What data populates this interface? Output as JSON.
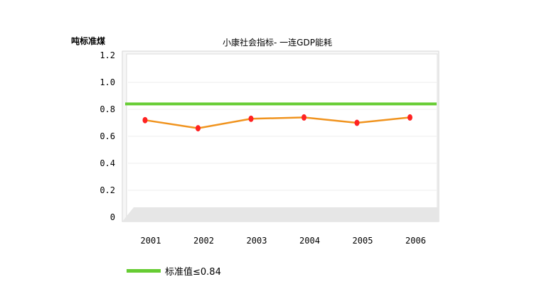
{
  "chart_data": {
    "type": "line",
    "title": "小康社会指标- 一连GDP能耗",
    "ylabel": "吨标准煤",
    "xlabel": "",
    "categories": [
      "2001",
      "2002",
      "2003",
      "2004",
      "2005",
      "2006"
    ],
    "series": [
      {
        "name": "",
        "values": [
          0.72,
          0.66,
          0.73,
          0.74,
          0.7,
          0.74
        ],
        "color": "#f0931e",
        "marker_color": "#ff2222"
      }
    ],
    "reference_line": {
      "label": "标准值≤0.84",
      "value": 0.84,
      "color": "#66cc33"
    },
    "ylim": [
      0,
      1.2
    ],
    "yticks": [
      {
        "value": 0,
        "label": "0"
      },
      {
        "value": 0.2,
        "label": "0.2"
      },
      {
        "value": 0.4,
        "label": "0.4"
      },
      {
        "value": 0.6,
        "label": "0.6"
      },
      {
        "value": 0.8,
        "label": "0.8"
      },
      {
        "value": 1.0,
        "label": "1.0"
      },
      {
        "value": 1.2,
        "label": "1.2"
      }
    ],
    "grid": true,
    "legend": "bottom-left"
  }
}
